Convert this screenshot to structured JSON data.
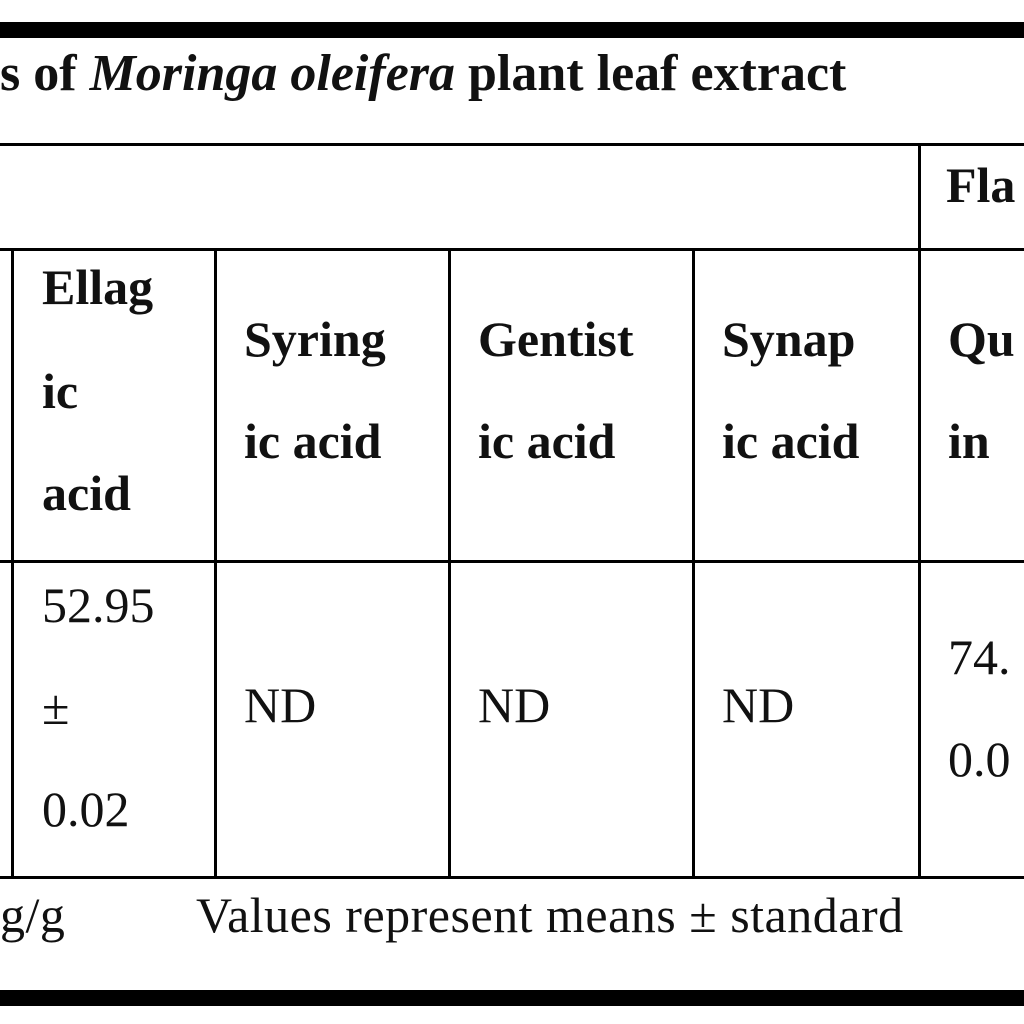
{
  "table": {
    "caption_prefix": "s of ",
    "caption_species": "Moringa oleifera",
    "caption_suffix": " plant leaf extract",
    "group_header": "Fla",
    "columns": [
      {
        "line1": "Ellag",
        "line2": "ic",
        "line3": "acid"
      },
      {
        "line1": "Syring",
        "line2": "ic acid"
      },
      {
        "line1": "Gentist",
        "line2": "ic acid"
      },
      {
        "line1": "Synap",
        "line2": "ic acid"
      },
      {
        "line1": "Qu",
        "line2": "in"
      }
    ],
    "row": {
      "ellagic": {
        "line1": "52.95",
        "line2": "±",
        "line3": "0.02"
      },
      "syringic": "ND",
      "gentisic": "ND",
      "synapic": "ND",
      "quercetin": {
        "line1": "74.",
        "line2": "0.0"
      }
    },
    "footnote_unit": "g/g",
    "footnote_text": "Values represent means ± standard"
  }
}
